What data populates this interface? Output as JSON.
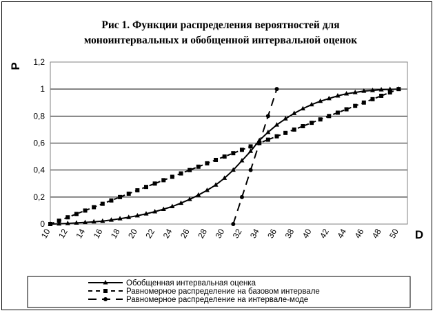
{
  "chart_data": {
    "type": "line",
    "title_lines": [
      "Рис 1. Функции распределения вероятностей для",
      "моноинтервальных и обобщенной интервальной оценок"
    ],
    "xlabel": "D",
    "ylabel": "P",
    "xlim": [
      10,
      51
    ],
    "ylim": [
      0,
      1.2
    ],
    "x_ticks": [
      "10",
      "12",
      "14",
      "16",
      "18",
      "20",
      "22",
      "24",
      "26",
      "28",
      "30",
      "32",
      "34",
      "36",
      "38",
      "40",
      "42",
      "44",
      "46",
      "48",
      "50"
    ],
    "y_ticks": [
      "0",
      "0,2",
      "0,4",
      "0,6",
      "0,8",
      "1",
      "1,2"
    ],
    "grid": "horizontal",
    "legend_position": "bottom",
    "series": [
      {
        "name": "Обобщенная интервальная оценка",
        "style": "solid",
        "marker": "triangle",
        "x": [
          10,
          11,
          12,
          13,
          14,
          15,
          16,
          17,
          18,
          19,
          20,
          21,
          22,
          23,
          24,
          25,
          26,
          27,
          28,
          29,
          30,
          31,
          32,
          33,
          34,
          35,
          36,
          37,
          38,
          39,
          40,
          41,
          42,
          43,
          44,
          45,
          46,
          47,
          48,
          49,
          50
        ],
        "y": [
          0.0,
          0.002,
          0.005,
          0.008,
          0.012,
          0.017,
          0.022,
          0.03,
          0.04,
          0.05,
          0.062,
          0.076,
          0.092,
          0.11,
          0.13,
          0.155,
          0.183,
          0.215,
          0.25,
          0.29,
          0.34,
          0.4,
          0.47,
          0.54,
          0.62,
          0.68,
          0.735,
          0.78,
          0.82,
          0.855,
          0.885,
          0.91,
          0.93,
          0.95,
          0.965,
          0.975,
          0.985,
          0.99,
          0.995,
          0.998,
          1.0
        ]
      },
      {
        "name": "Равномерное распределение на базовом интервале",
        "style": "dashed",
        "marker": "square",
        "x": [
          10,
          11,
          12,
          13,
          14,
          15,
          16,
          17,
          18,
          19,
          20,
          21,
          22,
          23,
          24,
          25,
          26,
          27,
          28,
          29,
          30,
          31,
          32,
          33,
          34,
          35,
          36,
          37,
          38,
          39,
          40,
          41,
          42,
          43,
          44,
          45,
          46,
          47,
          48,
          49,
          50
        ],
        "y": [
          0.0,
          0.025,
          0.05,
          0.075,
          0.1,
          0.125,
          0.15,
          0.175,
          0.2,
          0.225,
          0.25,
          0.275,
          0.3,
          0.325,
          0.35,
          0.375,
          0.4,
          0.425,
          0.45,
          0.475,
          0.5,
          0.525,
          0.55,
          0.575,
          0.6,
          0.625,
          0.65,
          0.675,
          0.7,
          0.725,
          0.75,
          0.775,
          0.8,
          0.825,
          0.85,
          0.875,
          0.9,
          0.925,
          0.95,
          0.975,
          1.0
        ]
      },
      {
        "name": "Равномерное распределение на интервале-моде",
        "style": "dash-long",
        "marker": "circle",
        "x": [
          31,
          32,
          33,
          34,
          35,
          36
        ],
        "y": [
          0.0,
          0.2,
          0.4,
          0.6,
          0.8,
          1.0
        ]
      }
    ]
  },
  "legend": {
    "entries": [
      "Обобщенная интервальная оценка",
      "Равномерное распределение на базовом интервале",
      "Равномерное распределение на интервале-моде"
    ]
  }
}
